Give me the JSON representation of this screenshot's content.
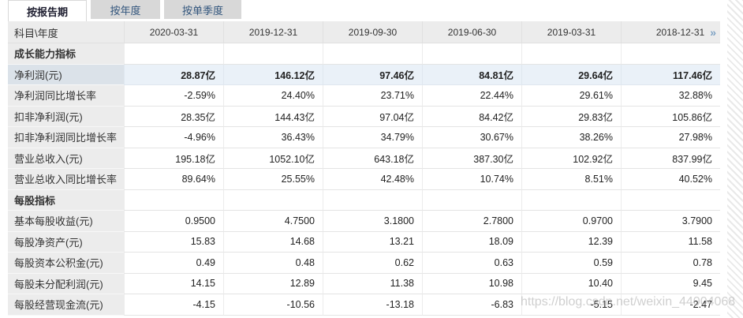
{
  "tabs": [
    {
      "label": "按报告期",
      "active": true
    },
    {
      "label": "按年度",
      "active": false
    },
    {
      "label": "按单季度",
      "active": false
    }
  ],
  "table": {
    "corner_label": "科目\\年度",
    "columns": [
      "2020-03-31",
      "2019-12-31",
      "2019-09-30",
      "2019-06-30",
      "2019-03-31",
      "2018-12-31"
    ],
    "more_icon": "»",
    "rows": [
      {
        "type": "section",
        "label": "成长能力指标",
        "values": [
          "",
          "",
          "",
          "",
          "",
          ""
        ]
      },
      {
        "type": "highlight",
        "label": "净利润(元)",
        "values": [
          "28.87亿",
          "146.12亿",
          "97.46亿",
          "84.81亿",
          "29.64亿",
          "117.46亿"
        ]
      },
      {
        "type": "data",
        "label": "净利润同比增长率",
        "values": [
          "-2.59%",
          "24.40%",
          "23.71%",
          "22.44%",
          "29.61%",
          "32.88%"
        ]
      },
      {
        "type": "data",
        "label": "扣非净利润(元)",
        "values": [
          "28.35亿",
          "144.43亿",
          "97.04亿",
          "84.42亿",
          "29.83亿",
          "105.86亿"
        ]
      },
      {
        "type": "data",
        "label": "扣非净利润同比增长率",
        "values": [
          "-4.96%",
          "36.43%",
          "34.79%",
          "30.67%",
          "38.26%",
          "27.98%"
        ]
      },
      {
        "type": "data",
        "label": "营业总收入(元)",
        "values": [
          "195.18亿",
          "1052.10亿",
          "643.18亿",
          "387.30亿",
          "102.92亿",
          "837.99亿"
        ]
      },
      {
        "type": "data",
        "label": "营业总收入同比增长率",
        "values": [
          "89.64%",
          "25.55%",
          "42.48%",
          "10.74%",
          "8.51%",
          "40.52%"
        ]
      },
      {
        "type": "section",
        "label": "每股指标",
        "values": [
          "",
          "",
          "",
          "",
          "",
          ""
        ]
      },
      {
        "type": "data",
        "label": "基本每股收益(元)",
        "values": [
          "0.9500",
          "4.7500",
          "3.1800",
          "2.7800",
          "0.9700",
          "3.7900"
        ]
      },
      {
        "type": "data",
        "label": "每股净资产(元)",
        "values": [
          "15.83",
          "14.68",
          "13.21",
          "18.09",
          "12.39",
          "11.58"
        ]
      },
      {
        "type": "data",
        "label": "每股资本公积金(元)",
        "values": [
          "0.49",
          "0.48",
          "0.62",
          "0.63",
          "0.59",
          "0.78"
        ]
      },
      {
        "type": "data",
        "label": "每股未分配利润(元)",
        "values": [
          "14.15",
          "12.89",
          "11.38",
          "10.98",
          "10.40",
          "9.45"
        ]
      },
      {
        "type": "data",
        "label": "每股经营现金流(元)",
        "values": [
          "-4.15",
          "-10.56",
          "-13.18",
          "-6.83",
          "-5.15",
          "-2.47"
        ]
      }
    ]
  },
  "watermark": "https://blog.csdn.net/weixin_44004068",
  "colors": {
    "accent_blue_icon": "#7da2c4",
    "tab_inactive_bg": "#d8d8d8",
    "tab_inactive_text": "#33567d",
    "header_bg": "#ececec",
    "highlight_label_bg": "#dbe2e9",
    "highlight_cell_bg": "#eaf1f8",
    "border": "#e4e4e4"
  }
}
